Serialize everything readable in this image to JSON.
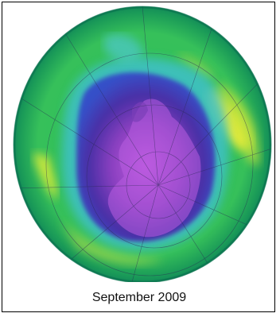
{
  "map": {
    "caption": "September 2009",
    "colors": {
      "outer_edge": "#0d7e58",
      "green": "#2bc05a",
      "yellow_green": "#c7e33a",
      "yellow": "#f5f03a",
      "cyan": "#3fc0c9",
      "blue": "#3650c8",
      "indigo": "#4a2fa6",
      "purple": "#8a40c0",
      "magenta": "#c25be0",
      "frame": "#000000"
    },
    "icons": [
      "ozone-globe-icon",
      "antarctica-landmass-icon",
      "graticule-grid-icon"
    ]
  }
}
